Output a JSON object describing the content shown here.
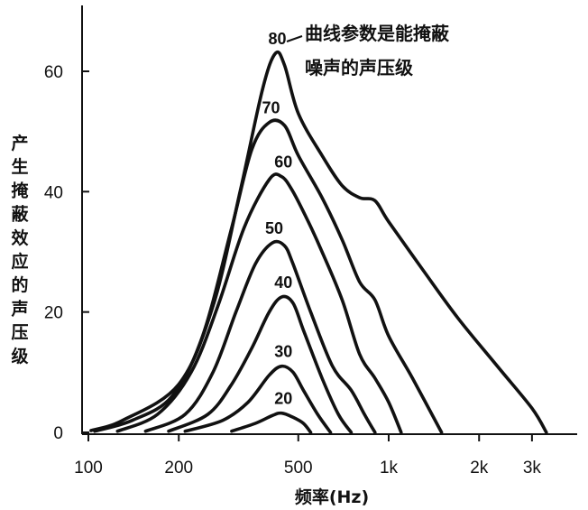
{
  "chart_data": {
    "type": "line",
    "title": "",
    "xlabel": "频率(Hz)",
    "ylabel": "产生掩蔽效应的声压级",
    "x_scale": "log",
    "xlim": [
      100,
      3500
    ],
    "ylim": [
      0,
      70
    ],
    "x_ticks": [
      {
        "value": 100,
        "label": "100"
      },
      {
        "value": 200,
        "label": "200"
      },
      {
        "value": 500,
        "label": "500"
      },
      {
        "value": 1000,
        "label": "1k"
      },
      {
        "value": 2000,
        "label": "2k"
      },
      {
        "value": 3000,
        "label": "3k"
      }
    ],
    "y_ticks": [
      {
        "value": 0,
        "label": "0"
      },
      {
        "value": 20,
        "label": "20"
      },
      {
        "value": 40,
        "label": "40"
      },
      {
        "value": 60,
        "label": "60"
      }
    ],
    "annotation": [
      "曲线参数是能掩蔽",
      "噪声的声压级"
    ],
    "grid": false,
    "legend": "none",
    "series": [
      {
        "label": "80",
        "points": [
          [
            102,
            0.3
          ],
          [
            130,
            2
          ],
          [
            200,
            8
          ],
          [
            260,
            21
          ],
          [
            320,
            40
          ],
          [
            380,
            57
          ],
          [
            420,
            63
          ],
          [
            450,
            61
          ],
          [
            500,
            53
          ],
          [
            600,
            46
          ],
          [
            700,
            41
          ],
          [
            800,
            39
          ],
          [
            900,
            38.5
          ],
          [
            1000,
            35
          ],
          [
            1300,
            27
          ],
          [
            1700,
            19
          ],
          [
            2300,
            11
          ],
          [
            3000,
            4
          ],
          [
            3350,
            0
          ]
        ]
      },
      {
        "label": "70",
        "points": [
          [
            105,
            0.2
          ],
          [
            140,
            2
          ],
          [
            190,
            6
          ],
          [
            240,
            16
          ],
          [
            300,
            34
          ],
          [
            350,
            47
          ],
          [
            400,
            51.5
          ],
          [
            450,
            51
          ],
          [
            500,
            46
          ],
          [
            600,
            39
          ],
          [
            700,
            32
          ],
          [
            800,
            25
          ],
          [
            900,
            22
          ],
          [
            1000,
            16
          ],
          [
            1200,
            9
          ],
          [
            1500,
            0
          ]
        ]
      },
      {
        "label": "60",
        "points": [
          [
            125,
            0.2
          ],
          [
            170,
            3
          ],
          [
            220,
            10
          ],
          [
            270,
            21
          ],
          [
            330,
            34
          ],
          [
            400,
            42
          ],
          [
            440,
            42.5
          ],
          [
            480,
            40
          ],
          [
            540,
            35
          ],
          [
            600,
            30
          ],
          [
            700,
            22
          ],
          [
            800,
            13
          ],
          [
            900,
            9
          ],
          [
            1000,
            5
          ],
          [
            1100,
            0
          ]
        ]
      },
      {
        "label": "50",
        "points": [
          [
            155,
            0.2
          ],
          [
            210,
            3
          ],
          [
            260,
            10
          ],
          [
            310,
            20
          ],
          [
            360,
            28
          ],
          [
            410,
            31.5
          ],
          [
            450,
            31
          ],
          [
            480,
            28
          ],
          [
            550,
            20
          ],
          [
            650,
            11
          ],
          [
            750,
            7
          ],
          [
            830,
            3
          ],
          [
            900,
            0
          ]
        ]
      },
      {
        "label": "40",
        "points": [
          [
            185,
            0.2
          ],
          [
            250,
            3
          ],
          [
            300,
            8
          ],
          [
            350,
            14
          ],
          [
            400,
            20
          ],
          [
            440,
            22.5
          ],
          [
            480,
            21.5
          ],
          [
            520,
            17
          ],
          [
            600,
            9
          ],
          [
            680,
            3
          ],
          [
            750,
            0
          ]
        ]
      },
      {
        "label": "30",
        "points": [
          [
            210,
            0.2
          ],
          [
            280,
            2
          ],
          [
            340,
            5
          ],
          [
            400,
            9.5
          ],
          [
            440,
            11
          ],
          [
            480,
            10
          ],
          [
            520,
            7
          ],
          [
            580,
            3
          ],
          [
            640,
            0
          ]
        ]
      },
      {
        "label": "20",
        "points": [
          [
            300,
            0.2
          ],
          [
            360,
            1.5
          ],
          [
            410,
            2.8
          ],
          [
            440,
            3.2
          ],
          [
            480,
            2.5
          ],
          [
            520,
            1.5
          ],
          [
            550,
            0
          ]
        ]
      }
    ]
  }
}
